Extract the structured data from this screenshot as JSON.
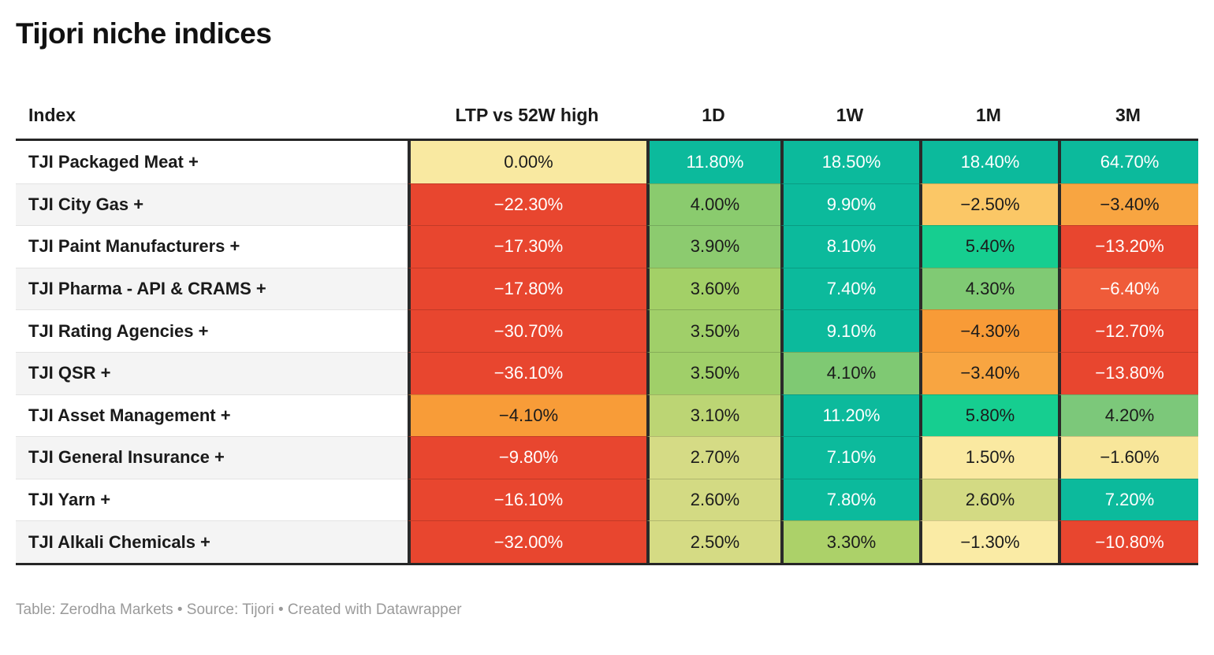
{
  "title": "Tijori niche indices",
  "footer": "Table: Zerodha Markets • Source: Tijori • Created with Datawrapper",
  "colors": {
    "divider_dark": "#2a2a2a",
    "teal_strong_positive": "#0CBA9C",
    "emerald_positive": "#16CE90",
    "medium_green": "#7EC977",
    "light_green": "#8BCB6E",
    "yellow_green": "#A1CF69",
    "muted_yellow_green": "#D4DB84",
    "pale_yellow_neutral": "#F9E9A1",
    "amber": "#FBC766",
    "orange": "#F89C38",
    "orange_red": "#EF5B39",
    "red_negative": "#E8462F",
    "row_stripe": "#f4f4f4"
  },
  "table": {
    "columns": [
      {
        "key": "index",
        "label": "Index"
      },
      {
        "key": "ltp",
        "label": "LTP vs 52W high"
      },
      {
        "key": "d1",
        "label": "1D"
      },
      {
        "key": "w1",
        "label": "1W"
      },
      {
        "key": "m1",
        "label": "1M"
      },
      {
        "key": "m3",
        "label": "3M"
      }
    ],
    "rows": [
      {
        "name": "TJI Packaged Meat +",
        "cells": [
          {
            "text": "0.00%",
            "bg": "#F9E9A1",
            "fg": "#1b1b1b"
          },
          {
            "text": "11.80%",
            "bg": "#0CBA9C",
            "fg": "#ffffff"
          },
          {
            "text": "18.50%",
            "bg": "#0CBA9C",
            "fg": "#ffffff"
          },
          {
            "text": "18.40%",
            "bg": "#0CBA9C",
            "fg": "#ffffff"
          },
          {
            "text": "64.70%",
            "bg": "#0CBA9C",
            "fg": "#ffffff"
          }
        ]
      },
      {
        "name": "TJI City Gas +",
        "cells": [
          {
            "text": "−22.30%",
            "bg": "#E8462F",
            "fg": "#ffffff"
          },
          {
            "text": "4.00%",
            "bg": "#8ACB6E",
            "fg": "#1b1b1b"
          },
          {
            "text": "9.90%",
            "bg": "#0CBA9C",
            "fg": "#ffffff"
          },
          {
            "text": "−2.50%",
            "bg": "#FBC766",
            "fg": "#1b1b1b"
          },
          {
            "text": "−3.40%",
            "bg": "#F8A541",
            "fg": "#1b1b1b"
          }
        ]
      },
      {
        "name": "TJI Paint Manufacturers +",
        "cells": [
          {
            "text": "−17.30%",
            "bg": "#E8462F",
            "fg": "#ffffff"
          },
          {
            "text": "3.90%",
            "bg": "#8CCB6F",
            "fg": "#1b1b1b"
          },
          {
            "text": "8.10%",
            "bg": "#0CBA9C",
            "fg": "#ffffff"
          },
          {
            "text": "5.40%",
            "bg": "#16CE90",
            "fg": "#1b1b1b"
          },
          {
            "text": "−13.20%",
            "bg": "#E8462F",
            "fg": "#ffffff"
          }
        ]
      },
      {
        "name": "TJI Pharma - API & CRAMS +",
        "cells": [
          {
            "text": "−17.80%",
            "bg": "#E8462F",
            "fg": "#ffffff"
          },
          {
            "text": "3.60%",
            "bg": "#A3D067",
            "fg": "#1b1b1b"
          },
          {
            "text": "7.40%",
            "bg": "#0CBA9C",
            "fg": "#ffffff"
          },
          {
            "text": "4.30%",
            "bg": "#80CA74",
            "fg": "#1b1b1b"
          },
          {
            "text": "−6.40%",
            "bg": "#EF5B39",
            "fg": "#ffffff"
          }
        ]
      },
      {
        "name": "TJI Rating Agencies +",
        "cells": [
          {
            "text": "−30.70%",
            "bg": "#E8462F",
            "fg": "#ffffff"
          },
          {
            "text": "3.50%",
            "bg": "#A0CF69",
            "fg": "#1b1b1b"
          },
          {
            "text": "9.10%",
            "bg": "#0CBA9C",
            "fg": "#ffffff"
          },
          {
            "text": "−4.30%",
            "bg": "#F89B37",
            "fg": "#1b1b1b"
          },
          {
            "text": "−12.70%",
            "bg": "#E8462F",
            "fg": "#ffffff"
          }
        ]
      },
      {
        "name": "TJI QSR +",
        "cells": [
          {
            "text": "−36.10%",
            "bg": "#E8462F",
            "fg": "#ffffff"
          },
          {
            "text": "3.50%",
            "bg": "#A0CF69",
            "fg": "#1b1b1b"
          },
          {
            "text": "4.10%",
            "bg": "#7FC973",
            "fg": "#1b1b1b"
          },
          {
            "text": "−3.40%",
            "bg": "#F8A541",
            "fg": "#1b1b1b"
          },
          {
            "text": "−13.80%",
            "bg": "#E8462F",
            "fg": "#ffffff"
          }
        ]
      },
      {
        "name": "TJI Asset Management +",
        "cells": [
          {
            "text": "−4.10%",
            "bg": "#F89C38",
            "fg": "#1b1b1b"
          },
          {
            "text": "3.10%",
            "bg": "#BCD574",
            "fg": "#1b1b1b"
          },
          {
            "text": "11.20%",
            "bg": "#0CBA9C",
            "fg": "#ffffff"
          },
          {
            "text": "5.80%",
            "bg": "#16CE90",
            "fg": "#1b1b1b"
          },
          {
            "text": "4.20%",
            "bg": "#7CC87A",
            "fg": "#1b1b1b"
          }
        ]
      },
      {
        "name": "TJI General Insurance +",
        "cells": [
          {
            "text": "−9.80%",
            "bg": "#E8462F",
            "fg": "#ffffff"
          },
          {
            "text": "2.70%",
            "bg": "#D5DB85",
            "fg": "#1b1b1b"
          },
          {
            "text": "7.10%",
            "bg": "#0CBA9C",
            "fg": "#ffffff"
          },
          {
            "text": "1.50%",
            "bg": "#FAE9A1",
            "fg": "#1b1b1b"
          },
          {
            "text": "−1.60%",
            "bg": "#F8E69A",
            "fg": "#1b1b1b"
          }
        ]
      },
      {
        "name": "TJI Yarn +",
        "cells": [
          {
            "text": "−16.10%",
            "bg": "#E8462F",
            "fg": "#ffffff"
          },
          {
            "text": "2.60%",
            "bg": "#D3DA83",
            "fg": "#1b1b1b"
          },
          {
            "text": "7.80%",
            "bg": "#0CBA9C",
            "fg": "#ffffff"
          },
          {
            "text": "2.60%",
            "bg": "#D3DA83",
            "fg": "#1b1b1b"
          },
          {
            "text": "7.20%",
            "bg": "#0CBA9C",
            "fg": "#ffffff"
          }
        ]
      },
      {
        "name": "TJI Alkali Chemicals +",
        "cells": [
          {
            "text": "−32.00%",
            "bg": "#E8462F",
            "fg": "#ffffff"
          },
          {
            "text": "2.50%",
            "bg": "#D5DB84",
            "fg": "#1b1b1b"
          },
          {
            "text": "3.30%",
            "bg": "#ACD169",
            "fg": "#1b1b1b"
          },
          {
            "text": "−1.30%",
            "bg": "#FAEBA5",
            "fg": "#1b1b1b"
          },
          {
            "text": "−10.80%",
            "bg": "#E8462F",
            "fg": "#ffffff"
          }
        ]
      }
    ]
  },
  "chart_data": {
    "type": "table",
    "title": "Tijori niche indices",
    "columns": [
      "Index",
      "LTP vs 52W high",
      "1D",
      "1W",
      "1M",
      "3M"
    ],
    "unit": "percent",
    "color_scale": "red-yellow-green heatmap on value cells",
    "rows": [
      {
        "index": "TJI Packaged Meat",
        "ltp_vs_52w_high": 0.0,
        "d1": 11.8,
        "w1": 18.5,
        "m1": 18.4,
        "m3": 64.7
      },
      {
        "index": "TJI City Gas",
        "ltp_vs_52w_high": -22.3,
        "d1": 4.0,
        "w1": 9.9,
        "m1": -2.5,
        "m3": -3.4
      },
      {
        "index": "TJI Paint Manufacturers",
        "ltp_vs_52w_high": -17.3,
        "d1": 3.9,
        "w1": 8.1,
        "m1": 5.4,
        "m3": -13.2
      },
      {
        "index": "TJI Pharma - API & CRAMS",
        "ltp_vs_52w_high": -17.8,
        "d1": 3.6,
        "w1": 7.4,
        "m1": 4.3,
        "m3": -6.4
      },
      {
        "index": "TJI Rating Agencies",
        "ltp_vs_52w_high": -30.7,
        "d1": 3.5,
        "w1": 9.1,
        "m1": -4.3,
        "m3": -12.7
      },
      {
        "index": "TJI QSR",
        "ltp_vs_52w_high": -36.1,
        "d1": 3.5,
        "w1": 4.1,
        "m1": -3.4,
        "m3": -13.8
      },
      {
        "index": "TJI Asset Management",
        "ltp_vs_52w_high": -4.1,
        "d1": 3.1,
        "w1": 11.2,
        "m1": 5.8,
        "m3": 4.2
      },
      {
        "index": "TJI General Insurance",
        "ltp_vs_52w_high": -9.8,
        "d1": 2.7,
        "w1": 7.1,
        "m1": 1.5,
        "m3": -1.6
      },
      {
        "index": "TJI Yarn",
        "ltp_vs_52w_high": -16.1,
        "d1": 2.6,
        "w1": 7.8,
        "m1": 2.6,
        "m3": 7.2
      },
      {
        "index": "TJI Alkali Chemicals",
        "ltp_vs_52w_high": -32.0,
        "d1": 2.5,
        "w1": 3.3,
        "m1": -1.3,
        "m3": -10.8
      }
    ]
  }
}
